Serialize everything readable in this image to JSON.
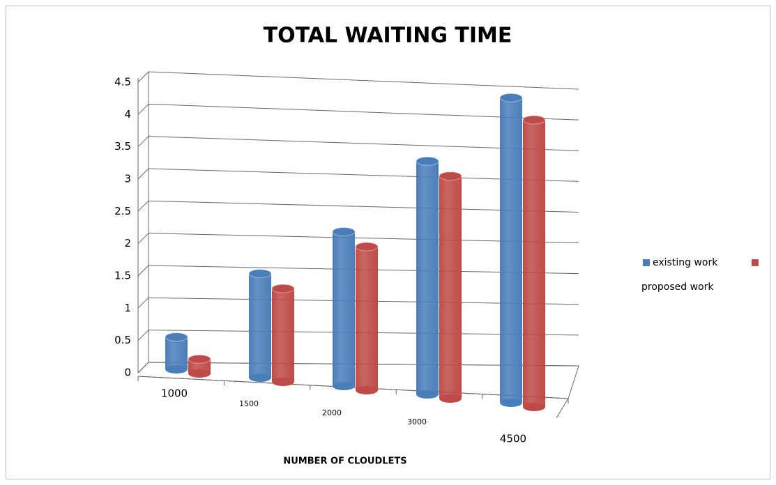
{
  "chart_data": {
    "type": "bar3d",
    "title": "TOTAL WAITING TIME",
    "x_label": "NUMBER OF CLOUDLETS",
    "categories": [
      "1000",
      "1500",
      "2000",
      "3000",
      "4500"
    ],
    "series": [
      {
        "name": "existing work",
        "color": "#4a7ebb",
        "values": [
          0.45,
          1.45,
          2.15,
          3.25,
          4.25
        ]
      },
      {
        "name": "proposed work",
        "color": "#be4b48",
        "values": [
          0.2,
          1.3,
          2.0,
          3.1,
          4.0
        ]
      }
    ],
    "ylim": [
      0,
      4.5
    ],
    "yticks": [
      0,
      0.5,
      1,
      1.5,
      2,
      2.5,
      3,
      3.5,
      4,
      4.5
    ],
    "grid": true,
    "legend": "right"
  }
}
